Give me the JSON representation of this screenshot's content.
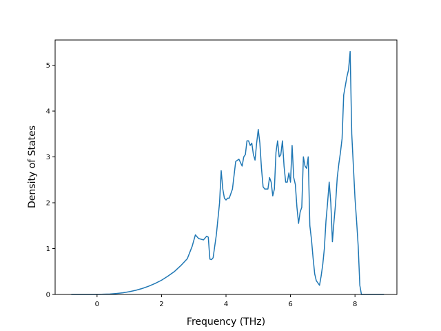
{
  "chart_data": {
    "type": "line",
    "title": "",
    "xlabel": "Frequency (THz)",
    "ylabel": "Density of States",
    "xlim": [
      -1.3,
      9.3
    ],
    "ylim": [
      0,
      5.55
    ],
    "xticks": [
      0,
      2,
      4,
      6,
      8
    ],
    "yticks": [
      0,
      1,
      2,
      3,
      4,
      5
    ],
    "grid": false,
    "colors": {
      "line": "#1f77b4"
    },
    "series": [
      {
        "points": [
          [
            -0.8,
            0
          ],
          [
            0.0,
            0
          ],
          [
            0.2,
            0.005
          ],
          [
            0.4,
            0.01
          ],
          [
            0.6,
            0.02
          ],
          [
            0.8,
            0.035
          ],
          [
            1.0,
            0.06
          ],
          [
            1.2,
            0.09
          ],
          [
            1.4,
            0.13
          ],
          [
            1.6,
            0.18
          ],
          [
            1.8,
            0.24
          ],
          [
            2.0,
            0.31
          ],
          [
            2.2,
            0.4
          ],
          [
            2.4,
            0.5
          ],
          [
            2.6,
            0.63
          ],
          [
            2.8,
            0.78
          ],
          [
            2.95,
            1.05
          ],
          [
            3.05,
            1.3
          ],
          [
            3.15,
            1.22
          ],
          [
            3.3,
            1.19
          ],
          [
            3.4,
            1.27
          ],
          [
            3.45,
            1.25
          ],
          [
            3.5,
            0.77
          ],
          [
            3.55,
            0.76
          ],
          [
            3.6,
            0.8
          ],
          [
            3.7,
            1.3
          ],
          [
            3.8,
            2.0
          ],
          [
            3.85,
            2.7
          ],
          [
            3.9,
            2.3
          ],
          [
            3.95,
            2.1
          ],
          [
            4.0,
            2.06
          ],
          [
            4.05,
            2.1
          ],
          [
            4.1,
            2.1
          ],
          [
            4.2,
            2.3
          ],
          [
            4.3,
            2.9
          ],
          [
            4.4,
            2.95
          ],
          [
            4.5,
            2.8
          ],
          [
            4.55,
            3.0
          ],
          [
            4.6,
            3.05
          ],
          [
            4.65,
            3.35
          ],
          [
            4.7,
            3.35
          ],
          [
            4.75,
            3.25
          ],
          [
            4.8,
            3.3
          ],
          [
            4.85,
            3.05
          ],
          [
            4.9,
            2.93
          ],
          [
            4.95,
            3.3
          ],
          [
            5.0,
            3.6
          ],
          [
            5.05,
            3.3
          ],
          [
            5.1,
            2.75
          ],
          [
            5.15,
            2.35
          ],
          [
            5.2,
            2.3
          ],
          [
            5.3,
            2.3
          ],
          [
            5.35,
            2.55
          ],
          [
            5.4,
            2.45
          ],
          [
            5.45,
            2.15
          ],
          [
            5.5,
            2.3
          ],
          [
            5.55,
            3.1
          ],
          [
            5.6,
            3.35
          ],
          [
            5.65,
            3.0
          ],
          [
            5.7,
            3.05
          ],
          [
            5.75,
            3.35
          ],
          [
            5.8,
            2.8
          ],
          [
            5.85,
            2.45
          ],
          [
            5.9,
            2.45
          ],
          [
            5.95,
            2.65
          ],
          [
            6.0,
            2.45
          ],
          [
            6.05,
            3.25
          ],
          [
            6.1,
            2.55
          ],
          [
            6.15,
            2.4
          ],
          [
            6.2,
            1.9
          ],
          [
            6.25,
            1.55
          ],
          [
            6.3,
            1.8
          ],
          [
            6.35,
            1.9
          ],
          [
            6.4,
            3.0
          ],
          [
            6.45,
            2.8
          ],
          [
            6.5,
            2.75
          ],
          [
            6.55,
            3.0
          ],
          [
            6.6,
            1.5
          ],
          [
            6.65,
            1.2
          ],
          [
            6.7,
            0.8
          ],
          [
            6.75,
            0.45
          ],
          [
            6.8,
            0.3
          ],
          [
            6.85,
            0.25
          ],
          [
            6.9,
            0.2
          ],
          [
            6.95,
            0.4
          ],
          [
            7.0,
            0.65
          ],
          [
            7.05,
            1.0
          ],
          [
            7.1,
            1.6
          ],
          [
            7.15,
            2.0
          ],
          [
            7.2,
            2.45
          ],
          [
            7.25,
            2.0
          ],
          [
            7.3,
            1.15
          ],
          [
            7.35,
            1.6
          ],
          [
            7.4,
            2.0
          ],
          [
            7.45,
            2.55
          ],
          [
            7.5,
            2.85
          ],
          [
            7.55,
            3.1
          ],
          [
            7.6,
            3.4
          ],
          [
            7.65,
            4.35
          ],
          [
            7.7,
            4.55
          ],
          [
            7.75,
            4.75
          ],
          [
            7.8,
            4.9
          ],
          [
            7.85,
            5.3
          ],
          [
            7.9,
            3.5
          ],
          [
            7.95,
            2.8
          ],
          [
            8.0,
            2.1
          ],
          [
            8.05,
            1.6
          ],
          [
            8.1,
            1.05
          ],
          [
            8.15,
            0.2
          ],
          [
            8.2,
            0
          ],
          [
            8.9,
            0
          ]
        ]
      }
    ]
  }
}
